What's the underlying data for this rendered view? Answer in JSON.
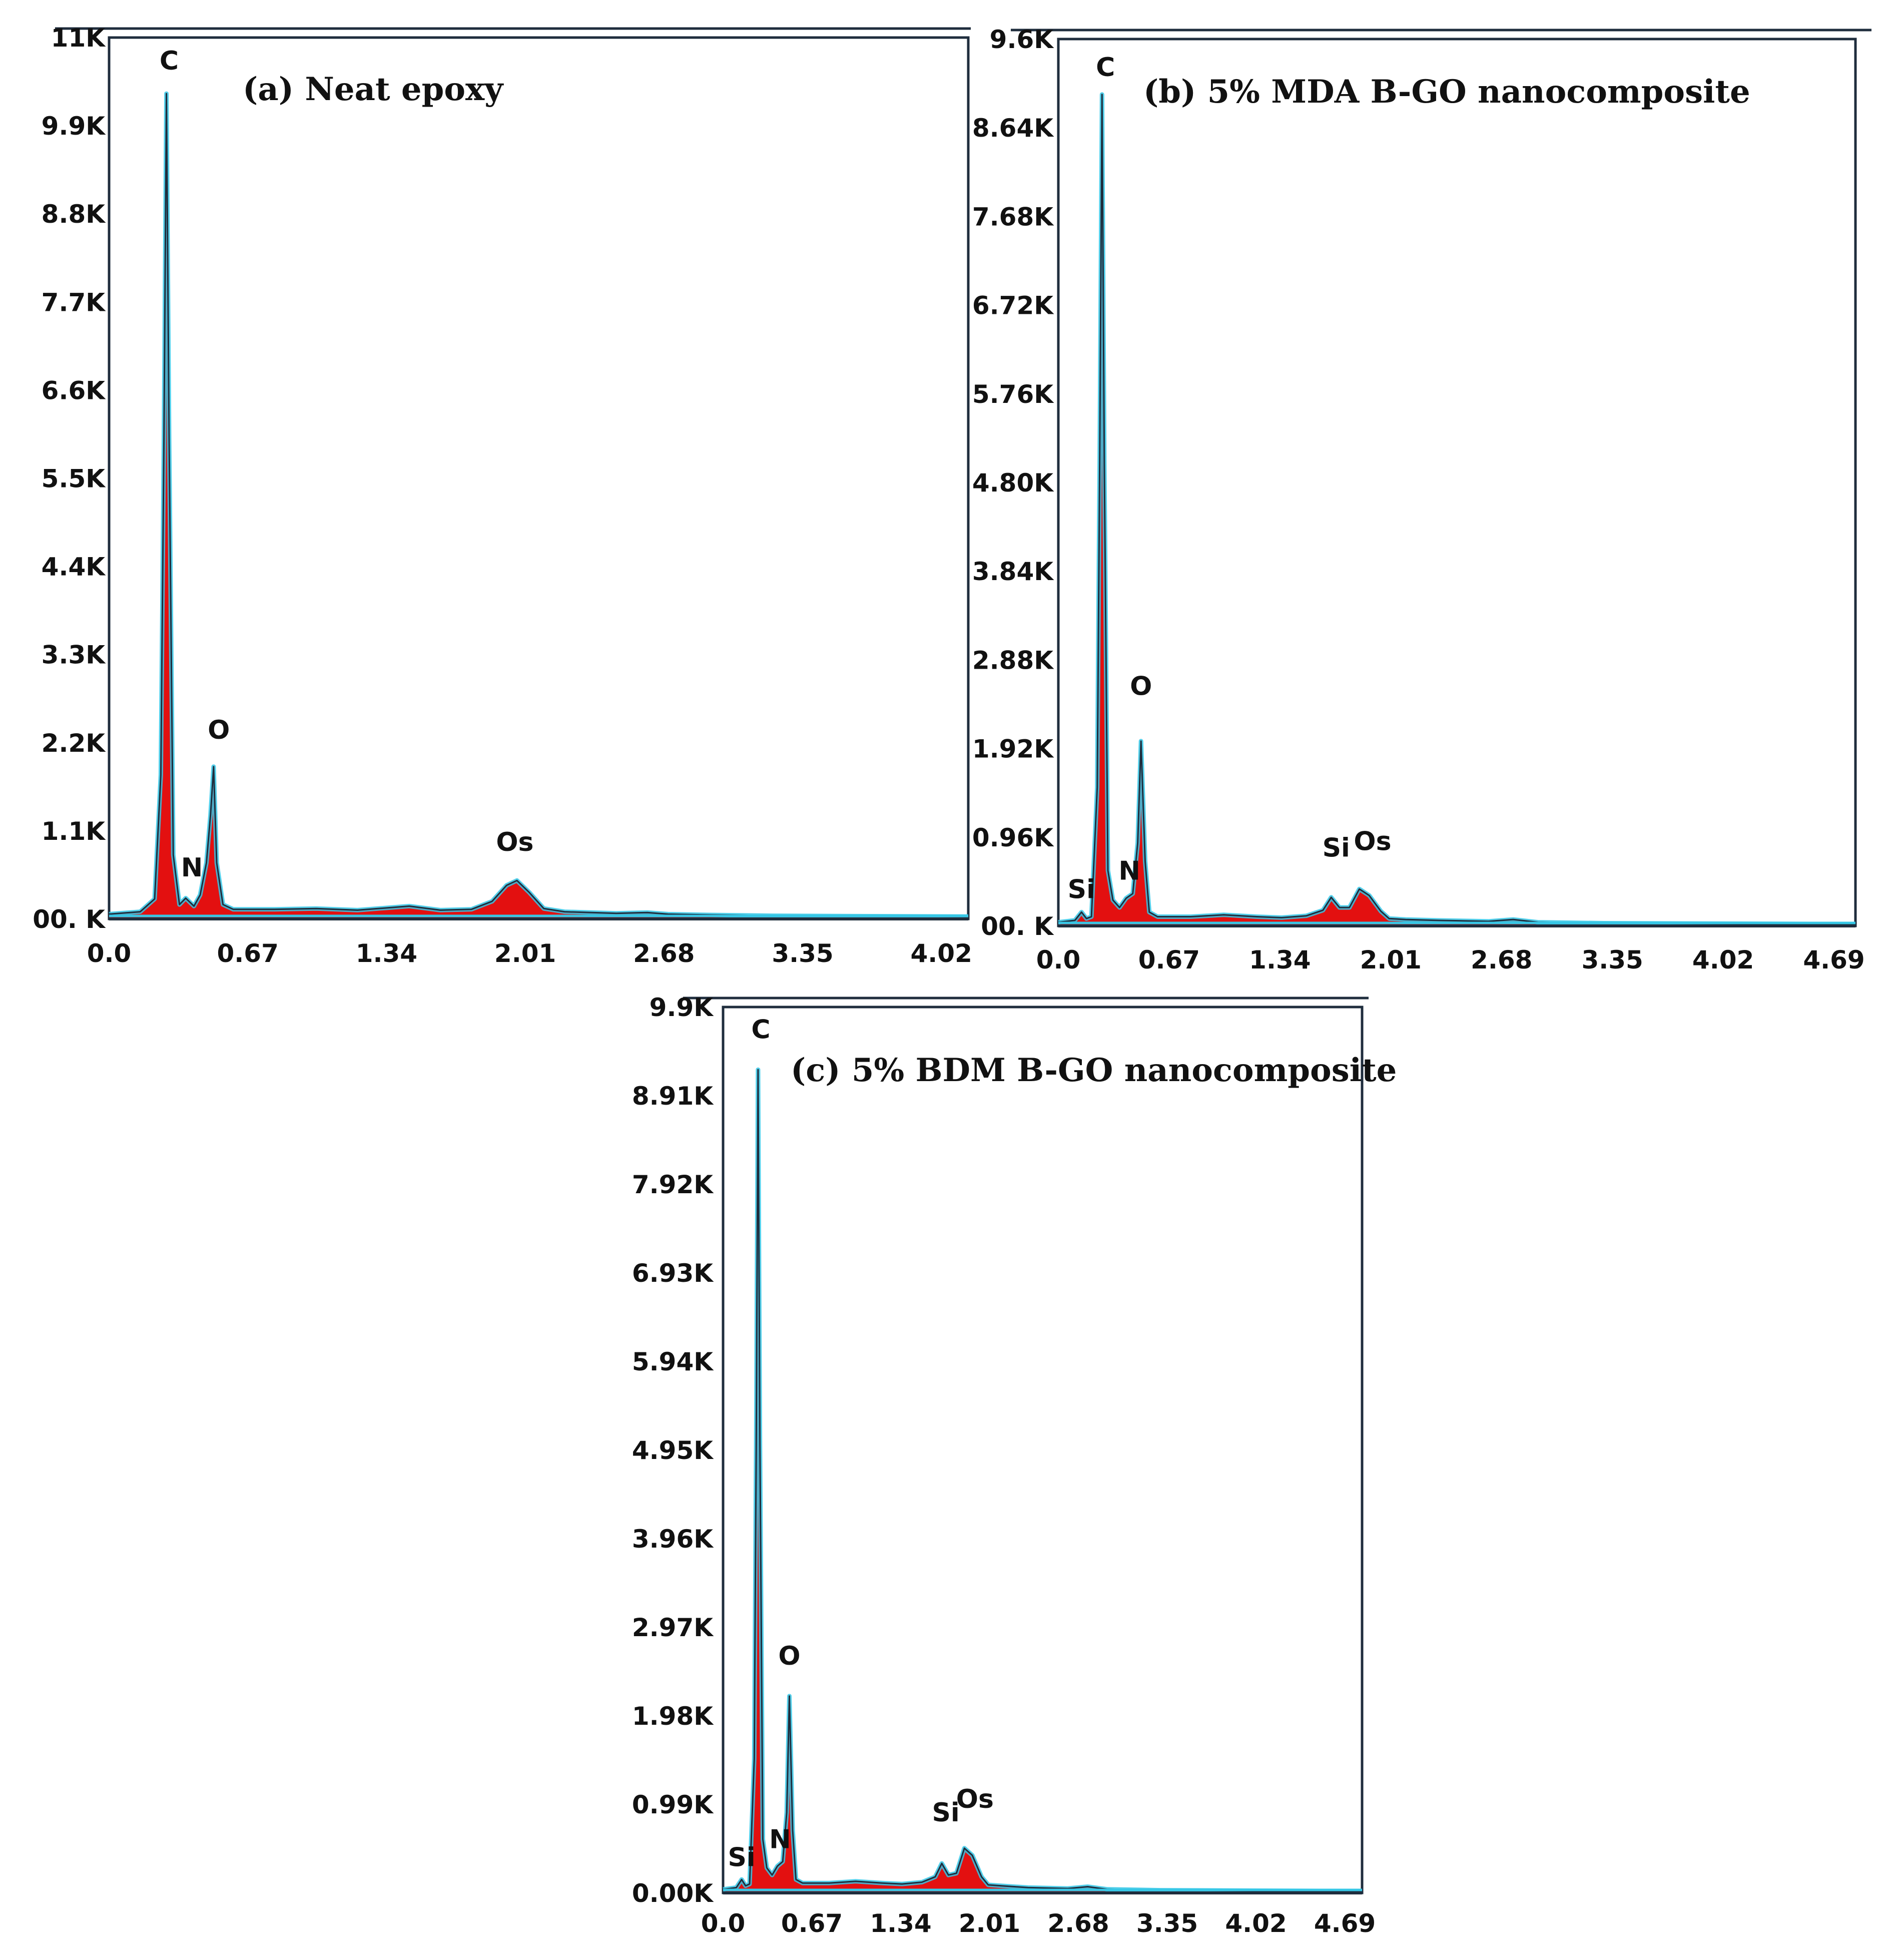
{
  "colors": {
    "fill": "#e31010",
    "outline": "#1f2d3d",
    "halo": "#35c7e6",
    "frame": "#1f2d3d",
    "bg": "#ffffff"
  },
  "chart_data": [
    {
      "type": "area",
      "title": "(a) Neat epoxy",
      "xlabel": "",
      "ylabel": "",
      "xlim": [
        0,
        4.15
      ],
      "ylim": [
        0,
        11000
      ],
      "y_ticks": [
        "00. K",
        "1.1K",
        "2.2K",
        "3.3K",
        "4.4K",
        "5.5K",
        "6.6K",
        "7.7K",
        "8.8K",
        "9.9K",
        "11K"
      ],
      "x_ticks": [
        "0.0",
        "0.67",
        "1.34",
        "2.01",
        "2.68",
        "3.35",
        "4.02"
      ],
      "series": [
        {
          "x": [
            0,
            0.15,
            0.22,
            0.25,
            0.265,
            0.277,
            0.29,
            0.31,
            0.34,
            0.37,
            0.41,
            0.44,
            0.47,
            0.49,
            0.505,
            0.52,
            0.55,
            0.6,
            0.8,
            1.0,
            1.2,
            1.35,
            1.45,
            1.6,
            1.75,
            1.85,
            1.92,
            1.97,
            2.03,
            2.1,
            2.2,
            2.45,
            2.6,
            2.7,
            2.9,
            3.2,
            3.6,
            4.15
          ],
          "y": [
            60,
            90,
            250,
            1800,
            6000,
            10300,
            6000,
            800,
            180,
            260,
            160,
            300,
            700,
            1300,
            1900,
            700,
            180,
            120,
            120,
            130,
            110,
            140,
            160,
            110,
            120,
            220,
            420,
            480,
            330,
            130,
            90,
            70,
            80,
            60,
            50,
            40,
            35,
            30
          ]
        }
      ],
      "peak_labels": [
        {
          "text": "C",
          "x": 0.29,
          "y": 10600
        },
        {
          "text": "N",
          "x": 0.4,
          "y": 530
        },
        {
          "text": "O",
          "x": 0.53,
          "y": 2250
        },
        {
          "text": "Os",
          "x": 1.96,
          "y": 850
        }
      ]
    },
    {
      "type": "area",
      "title": "(b) 5% MDA B-GO nanocomposite",
      "xlabel": "",
      "ylabel": "",
      "xlim": [
        0,
        4.82
      ],
      "ylim": [
        0,
        9600
      ],
      "y_ticks": [
        "00. K",
        "0.96K",
        "1.92K",
        "2.88K",
        "3.84K",
        "4.80K",
        "5.76K",
        "6.72K",
        "7.68K",
        "8.64K",
        "9.6K"
      ],
      "x_ticks": [
        "0.0",
        "0.67",
        "1.34",
        "2.01",
        "2.68",
        "3.35",
        "4.02",
        "4.69"
      ],
      "series": [
        {
          "x": [
            0,
            0.1,
            0.14,
            0.17,
            0.2,
            0.235,
            0.25,
            0.264,
            0.278,
            0.3,
            0.33,
            0.37,
            0.41,
            0.45,
            0.48,
            0.5,
            0.525,
            0.55,
            0.6,
            0.8,
            1.0,
            1.2,
            1.35,
            1.5,
            1.6,
            1.65,
            1.7,
            1.76,
            1.82,
            1.88,
            1.95,
            2.0,
            2.1,
            2.3,
            2.6,
            2.75,
            2.9,
            3.3,
            4.0,
            4.82
          ],
          "y": [
            40,
            60,
            150,
            80,
            100,
            1500,
            5000,
            9000,
            5000,
            600,
            280,
            200,
            300,
            350,
            900,
            2000,
            700,
            150,
            100,
            100,
            120,
            100,
            90,
            110,
            170,
            310,
            200,
            200,
            400,
            330,
            160,
            80,
            70,
            60,
            50,
            70,
            40,
            30,
            25,
            20
          ]
        }
      ],
      "peak_labels": [
        {
          "text": "C",
          "x": 0.285,
          "y": 9200
        },
        {
          "text": "Si",
          "x": 0.14,
          "y": 300
        },
        {
          "text": "N",
          "x": 0.43,
          "y": 500
        },
        {
          "text": "O",
          "x": 0.5,
          "y": 2500
        },
        {
          "text": "Si",
          "x": 1.68,
          "y": 750
        },
        {
          "text": "Os",
          "x": 1.9,
          "y": 820
        }
      ]
    },
    {
      "type": "area",
      "title": "(c) 5% BDM B-GO nanocomposite",
      "xlabel": "",
      "ylabel": "",
      "xlim": [
        0,
        4.82
      ],
      "ylim": [
        0,
        9900
      ],
      "y_ticks": [
        "0.00K",
        "0.99K",
        "1.98K",
        "2.97K",
        "3.96K",
        "4.95K",
        "5.94K",
        "6.93K",
        "7.92K",
        "8.91K",
        "9.9K"
      ],
      "x_ticks": [
        "0.0",
        "0.67",
        "1.34",
        "2.01",
        "2.68",
        "3.35",
        "4.02",
        "4.69"
      ],
      "series": [
        {
          "x": [
            0,
            0.1,
            0.14,
            0.17,
            0.2,
            0.235,
            0.25,
            0.264,
            0.278,
            0.3,
            0.33,
            0.37,
            0.41,
            0.45,
            0.48,
            0.5,
            0.525,
            0.55,
            0.6,
            0.8,
            1.0,
            1.2,
            1.35,
            1.5,
            1.6,
            1.65,
            1.7,
            1.76,
            1.82,
            1.88,
            1.95,
            2.0,
            2.1,
            2.3,
            2.6,
            2.75,
            2.9,
            3.3,
            4.0,
            4.82
          ],
          "y": [
            40,
            60,
            150,
            80,
            100,
            1500,
            5000,
            9200,
            5000,
            600,
            280,
            200,
            300,
            350,
            900,
            2200,
            700,
            150,
            110,
            110,
            130,
            110,
            100,
            120,
            180,
            330,
            200,
            220,
            500,
            420,
            180,
            90,
            80,
            60,
            50,
            70,
            40,
            30,
            25,
            20
          ]
        }
      ],
      "peak_labels": [
        {
          "text": "C",
          "x": 0.285,
          "y": 9550
        },
        {
          "text": "Si",
          "x": 0.14,
          "y": 300
        },
        {
          "text": "N",
          "x": 0.43,
          "y": 500
        },
        {
          "text": "O",
          "x": 0.5,
          "y": 2550
        },
        {
          "text": "Si",
          "x": 1.68,
          "y": 800
        },
        {
          "text": "Os",
          "x": 1.9,
          "y": 950
        }
      ]
    }
  ]
}
